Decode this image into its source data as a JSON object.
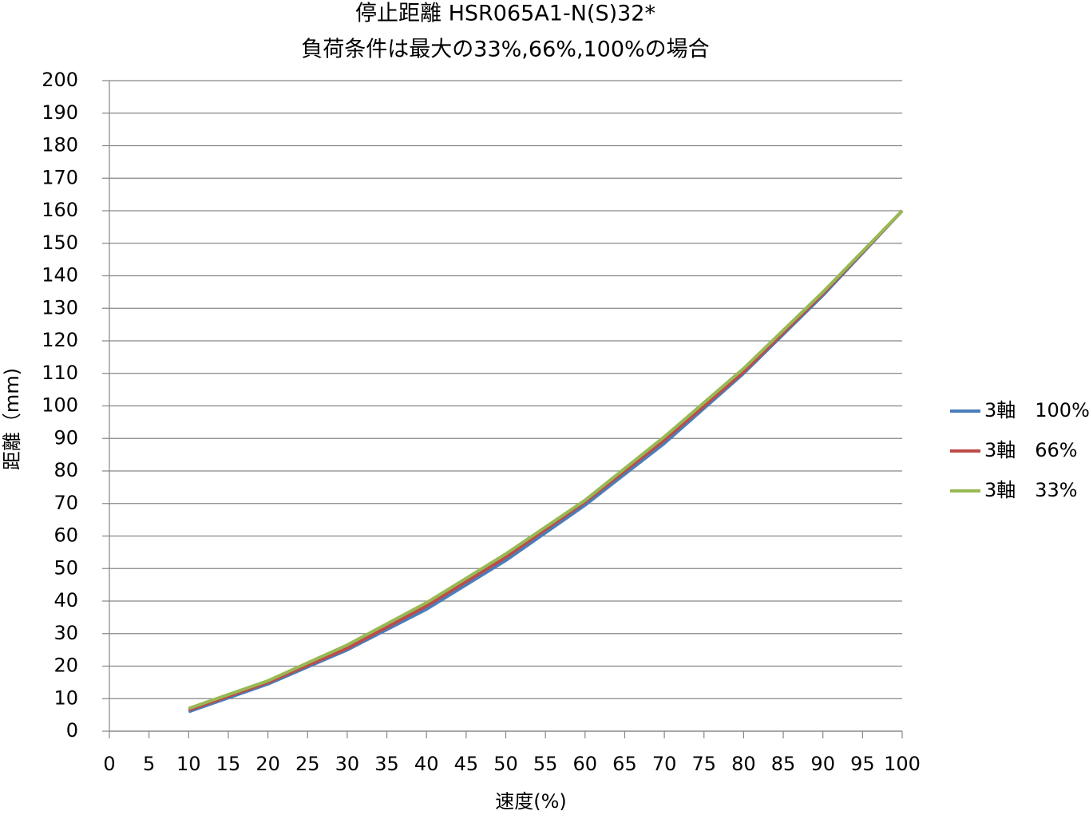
{
  "chart_data": {
    "type": "line",
    "title": "停止距離 HSR065A1-N(S)32*",
    "subtitle": "負荷条件は最大の33%,66%,100%の場合",
    "x_label": "速度(%)",
    "y_label": "距離（mm)",
    "x": [
      10,
      20,
      30,
      40,
      50,
      60,
      70,
      80,
      90,
      100
    ],
    "series": [
      {
        "name": "3軸　100%",
        "color": "#4a7ebb",
        "values": [
          6,
          14.5,
          25,
          37.5,
          52.5,
          69.5,
          88.5,
          110,
          134,
          160
        ]
      },
      {
        "name": "3軸　66%",
        "color": "#be4b48",
        "values": [
          6.5,
          15,
          25.5,
          38.5,
          53.5,
          70.5,
          89.5,
          110.5,
          134.5,
          160
        ]
      },
      {
        "name": "3軸　33%",
        "color": "#98b954",
        "values": [
          7,
          15.5,
          26.5,
          39.5,
          54.5,
          71,
          90.5,
          111.5,
          135,
          160
        ]
      }
    ],
    "xlim": [
      0,
      100
    ],
    "xticks": [
      0,
      5,
      10,
      15,
      20,
      25,
      30,
      35,
      40,
      45,
      50,
      55,
      60,
      65,
      70,
      75,
      80,
      85,
      90,
      95,
      100
    ],
    "ylim": [
      0,
      200
    ],
    "yticks": [
      0,
      10,
      20,
      30,
      40,
      50,
      60,
      70,
      80,
      90,
      100,
      110,
      120,
      130,
      140,
      150,
      160,
      170,
      180,
      190,
      200
    ],
    "grid": true,
    "legend": "right"
  }
}
